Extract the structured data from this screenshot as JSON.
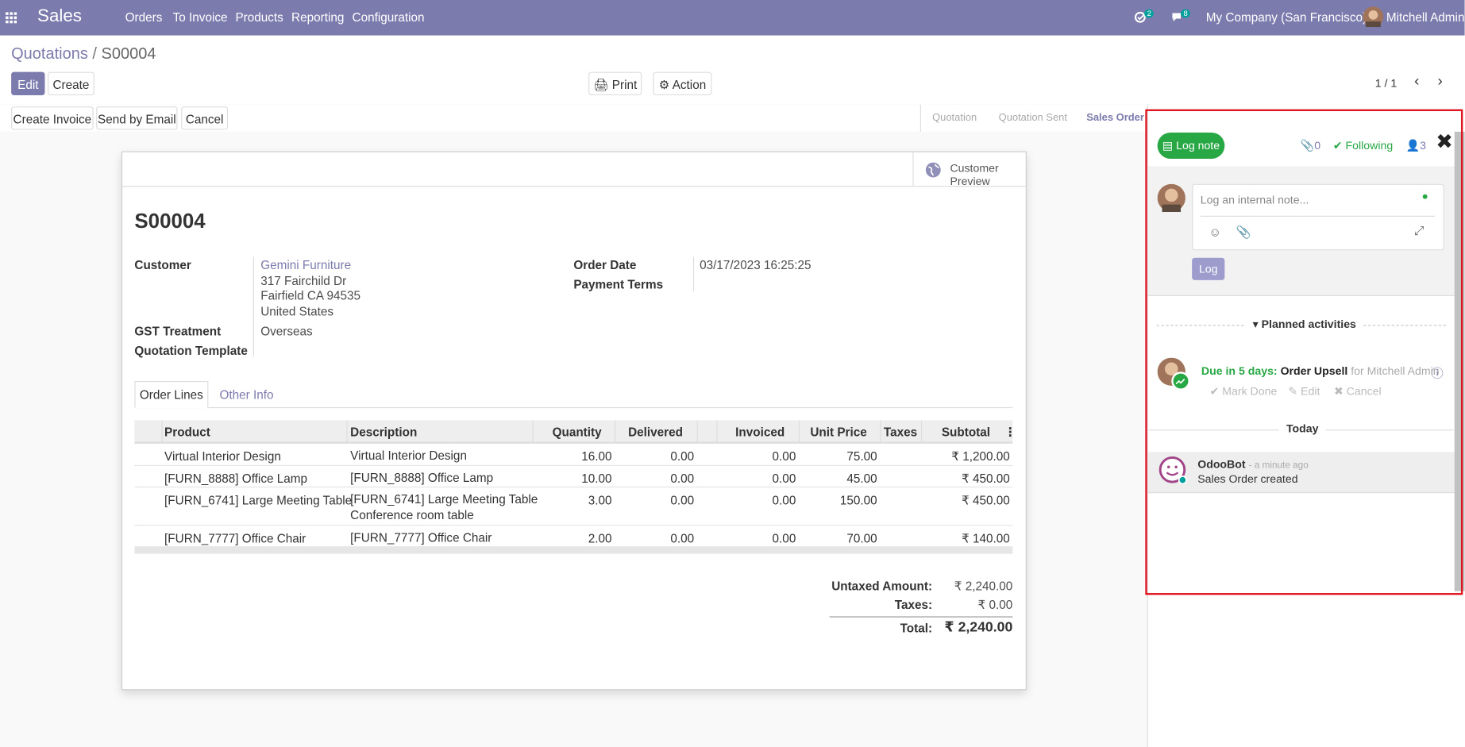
{
  "navbar": {
    "app": "Sales",
    "menu": [
      "Orders",
      "To Invoice",
      "Products",
      "Reporting",
      "Configuration"
    ],
    "activity_count": 2,
    "message_count": 8,
    "company": "My Company (San Francisco)",
    "user": "Mitchell Admin"
  },
  "breadcrumb": {
    "parent": "Quotations",
    "current": "S00004"
  },
  "buttons": {
    "edit": "Edit",
    "create": "Create",
    "print": "Print",
    "action": "Action",
    "pager": "1 / 1"
  },
  "status_bar": {
    "actions": [
      "Create Invoice",
      "Send by Email",
      "Cancel"
    ],
    "stages": [
      "Quotation",
      "Quotation Sent",
      "Sales Order"
    ]
  },
  "form": {
    "preview": "Customer Preview",
    "name": "S00004",
    "customer_label": "Customer",
    "customer": "Gemini Furniture",
    "address": [
      "317 Fairchild Dr",
      "Fairfield CA 94535",
      "United States"
    ],
    "gst_label": "GST Treatment",
    "gst": "Overseas",
    "template_label": "Quotation Template",
    "order_date_label": "Order Date",
    "order_date": "03/17/2023 16:25:25",
    "payment_terms_label": "Payment Terms",
    "tabs": [
      "Order Lines",
      "Other Info"
    ]
  },
  "table": {
    "headers": [
      "Product",
      "Description",
      "Quantity",
      "Delivered",
      "Invoiced",
      "Unit Price",
      "Taxes",
      "Subtotal"
    ],
    "rows": [
      {
        "product": "Virtual Interior Design",
        "description": "Virtual Interior Design",
        "quantity": "16.00",
        "delivered": "0.00",
        "invoiced": "0.00",
        "unit_price": "75.00",
        "subtotal": "₹ 1,200.00"
      },
      {
        "product": "[FURN_8888] Office Lamp",
        "description": "[FURN_8888] Office Lamp",
        "quantity": "10.00",
        "delivered": "0.00",
        "invoiced": "0.00",
        "unit_price": "45.00",
        "subtotal": "₹ 450.00"
      },
      {
        "product": "[FURN_6741] Large Meeting Table",
        "description": "[FURN_6741] Large Meeting Table\nConference room table",
        "quantity": "3.00",
        "delivered": "0.00",
        "invoiced": "0.00",
        "unit_price": "150.00",
        "subtotal": "₹ 450.00"
      },
      {
        "product": "[FURN_7777] Office Chair",
        "description": "[FURN_7777] Office Chair",
        "quantity": "2.00",
        "delivered": "0.00",
        "invoiced": "0.00",
        "unit_price": "70.00",
        "subtotal": "₹ 140.00"
      }
    ]
  },
  "totals": [
    {
      "label": "Untaxed Amount:",
      "value": "₹ 2,240.00"
    },
    {
      "label": "Taxes:",
      "value": "₹ 0.00"
    },
    {
      "label": "Total:",
      "value": "₹ 2,240.00"
    }
  ],
  "chatter": {
    "log_note": "Log note",
    "attachments": 0,
    "following": "Following",
    "followers": 3,
    "placeholder": "Log an internal note...",
    "log_button": "Log",
    "planned_title": "Planned activities",
    "activity": {
      "due": "Due in 5 days:",
      "summary": "Order Upsell",
      "assignee": "for Mitchell Admin",
      "actions": [
        "Mark Done",
        "Edit",
        "Cancel"
      ]
    },
    "today": "Today",
    "message": {
      "author": "OdooBot",
      "time": "- a minute ago",
      "body": "Sales Order created"
    }
  }
}
